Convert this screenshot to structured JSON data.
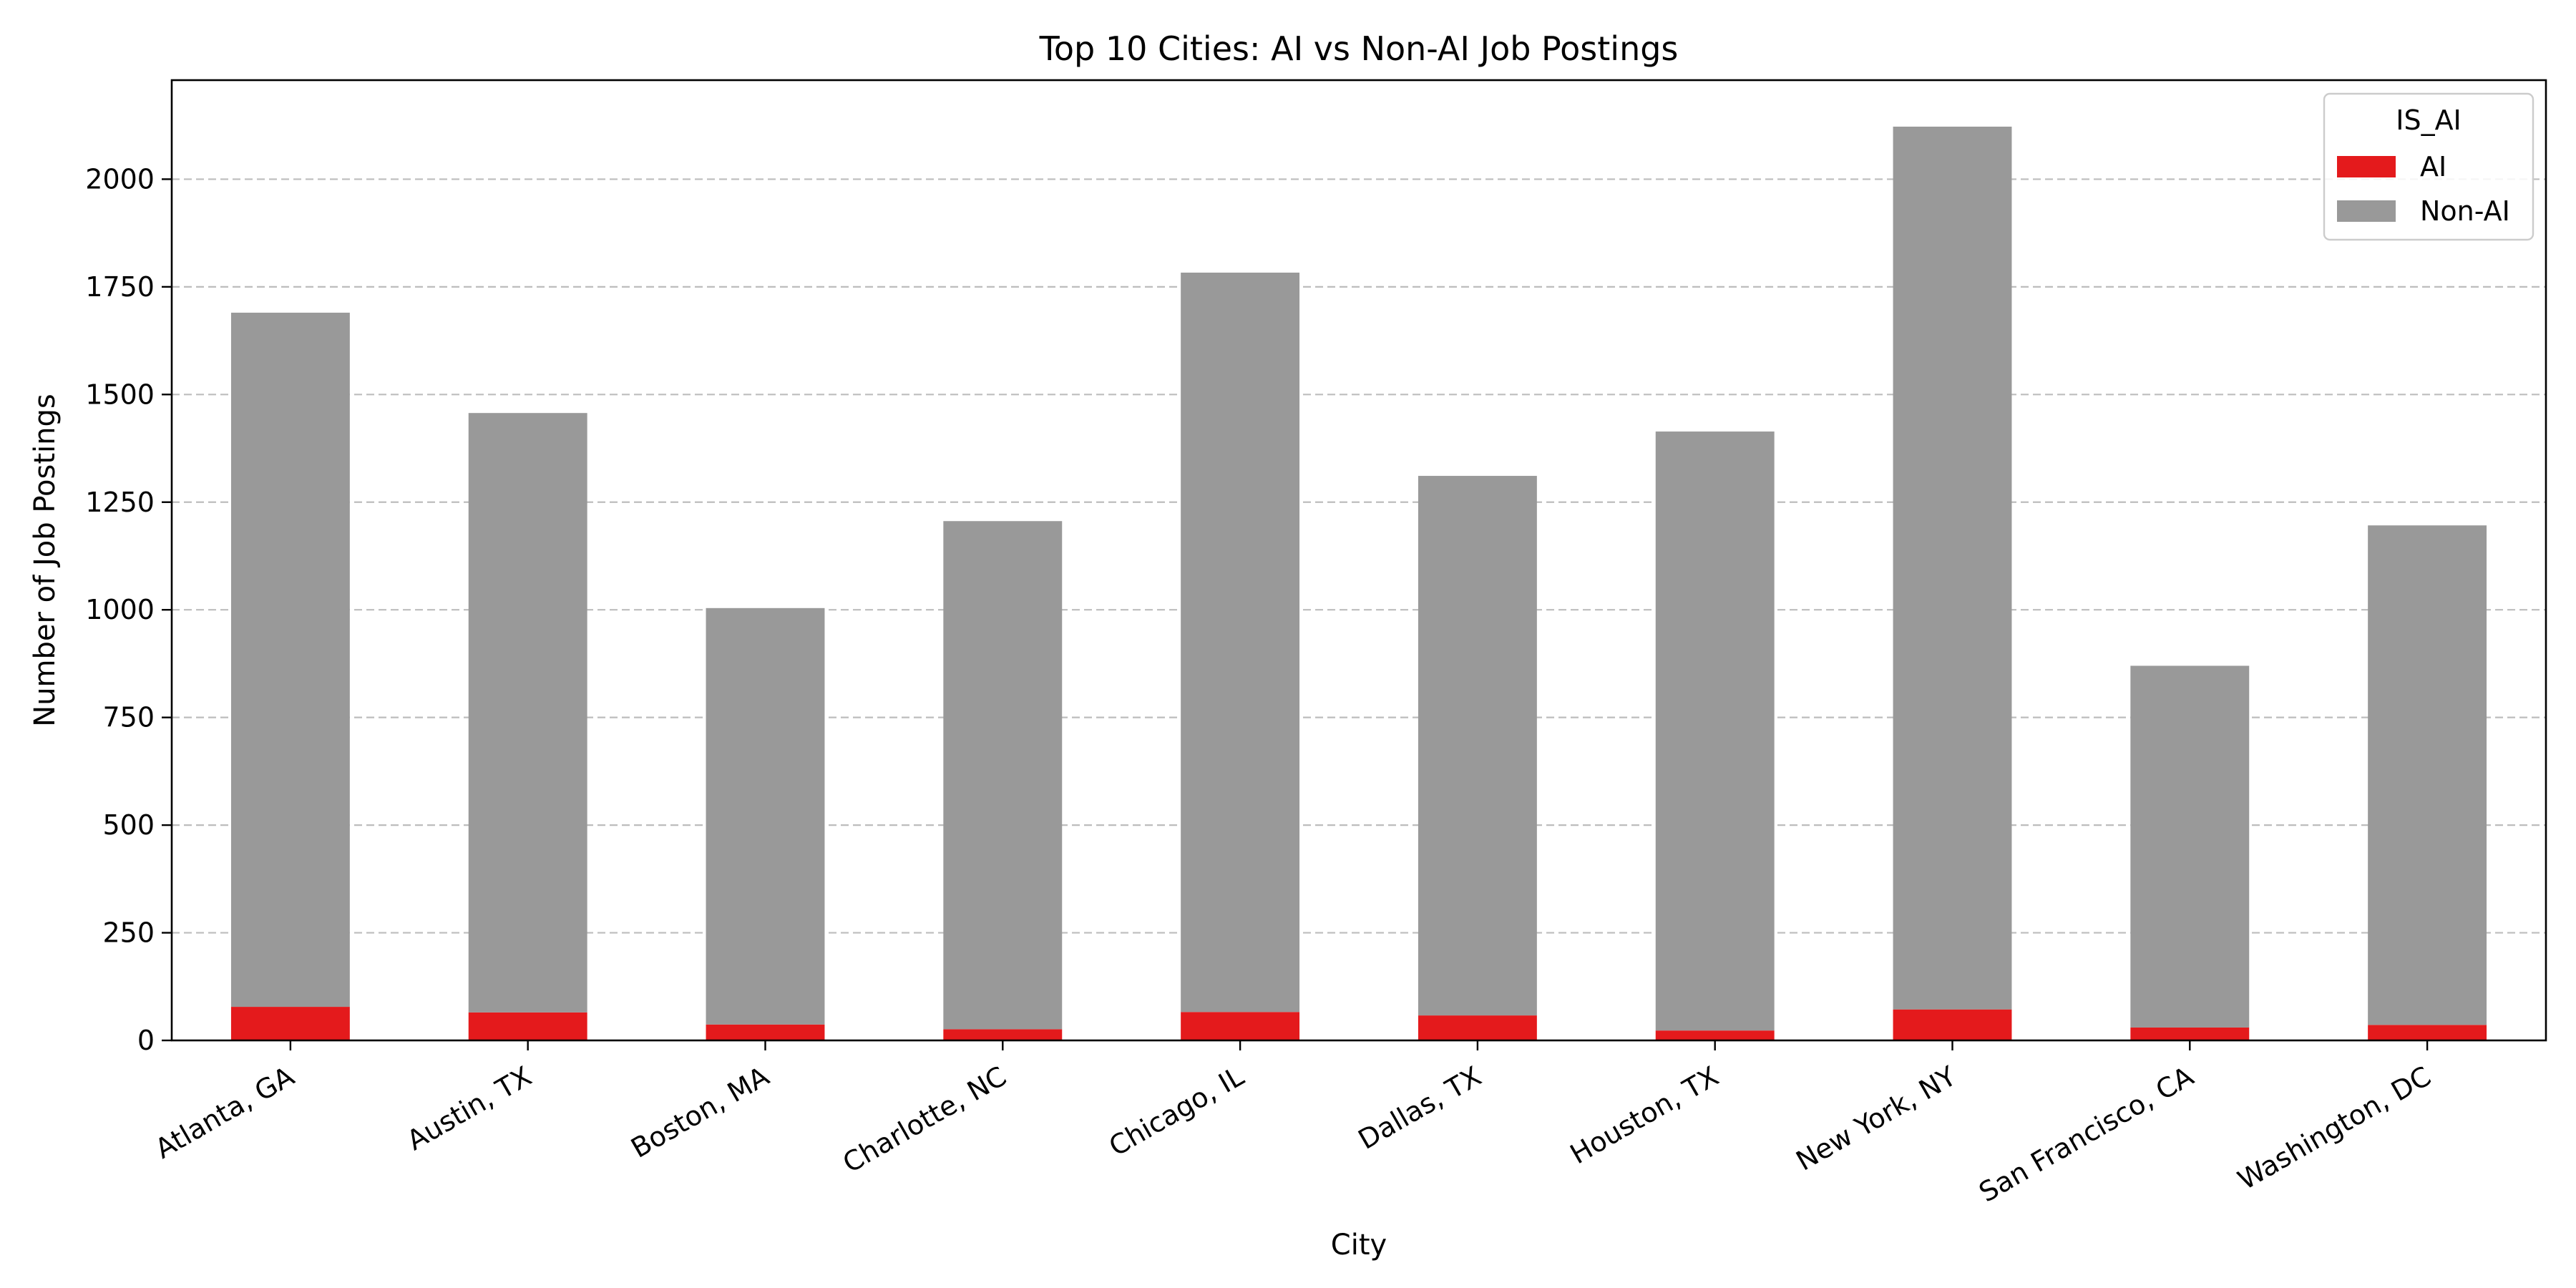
{
  "chart_data": {
    "type": "bar",
    "stacked": true,
    "title": "Top 10 Cities: AI vs Non-AI Job Postings",
    "xlabel": "City",
    "ylabel": "Number of Job Postings",
    "ylim": [
      0,
      2230
    ],
    "yticks": [
      0,
      250,
      500,
      750,
      1000,
      1250,
      1500,
      1750,
      2000
    ],
    "grid": "y-dashed",
    "legend": {
      "title": "IS_AI",
      "position": "top-right"
    },
    "categories": [
      "Atlanta, GA",
      "Austin, TX",
      "Boston, MA",
      "Charlotte, NC",
      "Chicago, IL",
      "Dallas, TX",
      "Houston, TX",
      "New York, NY",
      "San Francisco, CA",
      "Washington, DC"
    ],
    "series": [
      {
        "name": "AI",
        "color": "#e41a1c",
        "values": [
          78,
          65,
          37,
          26,
          66,
          58,
          23,
          72,
          30,
          36
        ]
      },
      {
        "name": "Non-AI",
        "color": "#999999",
        "values": [
          1612,
          1392,
          967,
          1180,
          1717,
          1253,
          1391,
          2050,
          840,
          1160
        ]
      }
    ]
  }
}
